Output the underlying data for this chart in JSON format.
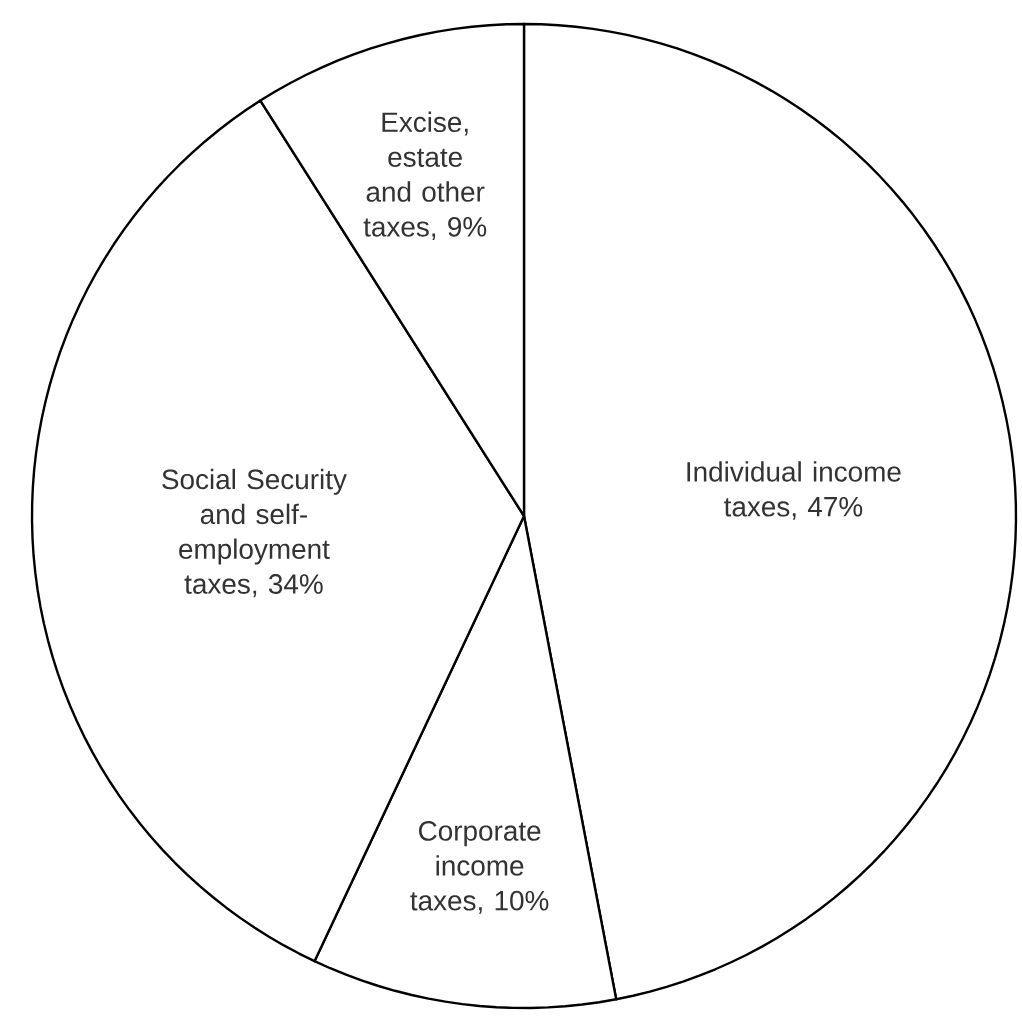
{
  "chart_data": {
    "type": "pie",
    "categories": [
      "Individual income taxes, 47%",
      "Corporate income taxes, 10%",
      "Social Security and self-employment taxes, 34%",
      "Excise, estate and other taxes, 9%"
    ],
    "values": [
      47,
      10,
      34,
      9
    ],
    "colors": [
      "#ffffff",
      "#ffffff",
      "#ffffff",
      "#ffffff"
    ]
  }
}
